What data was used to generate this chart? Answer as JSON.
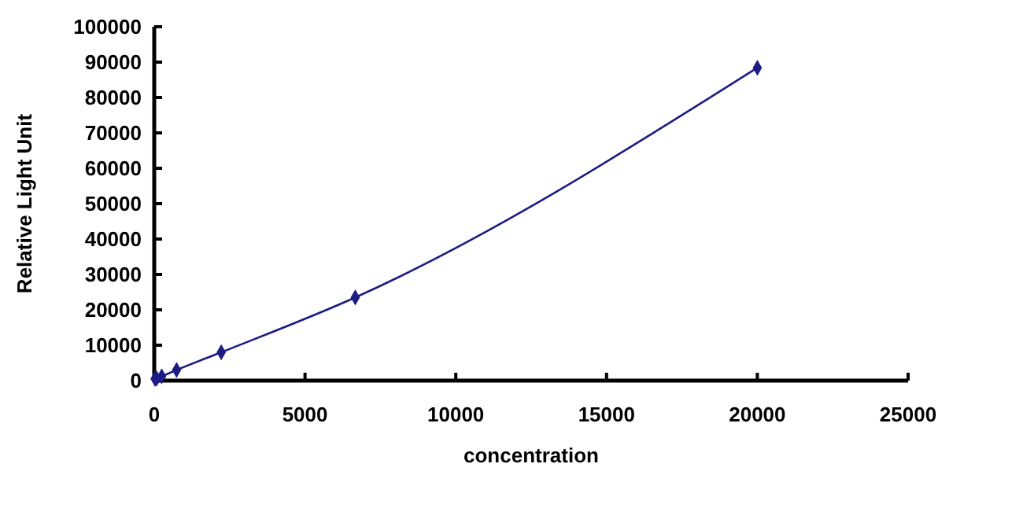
{
  "chart_data": {
    "type": "line",
    "xlabel": "concentration",
    "ylabel": "Relative Light Unit",
    "xlim": [
      0,
      25000
    ],
    "xticks": [
      0,
      5000,
      10000,
      15000,
      20000,
      25000
    ],
    "ylim": [
      0,
      100000
    ],
    "yticks": [
      0,
      10000,
      20000,
      30000,
      40000,
      50000,
      60000,
      70000,
      80000,
      90000,
      100000
    ],
    "marker": "diamond",
    "line_style": "solid",
    "grid": false,
    "series": [
      {
        "color": "#1c1c84",
        "x": [
          27,
          82,
          247,
          741,
          2222,
          6667,
          20000
        ],
        "values": [
          500,
          600,
          1200,
          3000,
          8000,
          23500,
          88400
        ]
      }
    ]
  }
}
